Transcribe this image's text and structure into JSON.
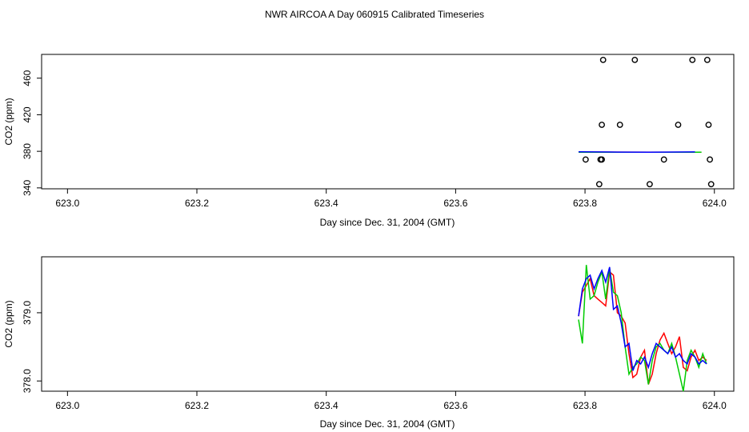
{
  "title": "NWR AIRCOA A  Day 060915  Calibrated Timeseries",
  "colors": {
    "red": "#ff0000",
    "green": "#00cc00",
    "blue": "#0000ff",
    "axis": "#000000"
  },
  "chart_data": [
    {
      "type": "scatter",
      "xlabel": "Day since Dec. 31, 2004 (GMT)",
      "ylabel": "CO2 (ppm)",
      "xlim": [
        622.96,
        624.03
      ],
      "ylim": [
        339,
        486
      ],
      "xticks": [
        623.0,
        623.2,
        623.4,
        623.6,
        623.8,
        624.0
      ],
      "xtick_labels": [
        "623.0",
        "623.2",
        "623.4",
        "623.6",
        "623.8",
        "624.0"
      ],
      "yticks": [
        340,
        380,
        420,
        460
      ],
      "ytick_labels": [
        "340",
        "380",
        "420",
        "460"
      ],
      "grid": false,
      "points": [
        {
          "x": 623.801,
          "y": 371
        },
        {
          "x": 623.822,
          "y": 344
        },
        {
          "x": 623.824,
          "y": 371
        },
        {
          "x": 623.826,
          "y": 371
        },
        {
          "x": 623.826,
          "y": 409
        },
        {
          "x": 623.828,
          "y": 480
        },
        {
          "x": 623.877,
          "y": 480
        },
        {
          "x": 623.854,
          "y": 409
        },
        {
          "x": 623.9,
          "y": 344
        },
        {
          "x": 623.922,
          "y": 371
        },
        {
          "x": 623.944,
          "y": 409
        },
        {
          "x": 623.966,
          "y": 480
        },
        {
          "x": 623.989,
          "y": 480
        },
        {
          "x": 623.991,
          "y": 409
        },
        {
          "x": 623.993,
          "y": 371
        },
        {
          "x": 623.995,
          "y": 344
        }
      ],
      "series": [
        {
          "color": "red",
          "x": [
            623.79,
            623.98
          ],
          "values": [
            379.2,
            379.0
          ]
        },
        {
          "color": "green",
          "x": [
            623.79,
            623.98
          ],
          "values": [
            379.0,
            379.1
          ]
        },
        {
          "color": "blue",
          "x": [
            623.79,
            623.85,
            623.9,
            623.97
          ],
          "values": [
            379.5,
            379.2,
            379.0,
            379.3
          ]
        }
      ]
    },
    {
      "type": "line",
      "xlabel": "Day since Dec. 31, 2004 (GMT)",
      "ylabel": "CO2 (ppm)",
      "xlim": [
        622.96,
        624.03
      ],
      "ylim": [
        377.85,
        379.82
      ],
      "xticks": [
        623.0,
        623.2,
        623.4,
        623.6,
        623.8,
        624.0
      ],
      "xtick_labels": [
        "623.0",
        "623.2",
        "623.4",
        "623.6",
        "623.8",
        "624.0"
      ],
      "yticks": [
        378.0,
        379.0
      ],
      "ytick_labels": [
        "378.0",
        "379.0"
      ],
      "grid": false,
      "series": [
        {
          "color": "red",
          "x": [
            623.79,
            623.796,
            623.802,
            623.808,
            623.814,
            623.82,
            623.826,
            623.832,
            623.838,
            623.844,
            623.85,
            623.856,
            623.862,
            623.868,
            623.874,
            623.88,
            623.886,
            623.892,
            623.898,
            623.904,
            623.91,
            623.916,
            623.922,
            623.928,
            623.934,
            623.94,
            623.946,
            623.952,
            623.958,
            623.964,
            623.97,
            623.976,
            623.982,
            623.988
          ],
          "values": [
            378.95,
            379.3,
            379.4,
            379.5,
            379.25,
            379.2,
            379.15,
            379.1,
            379.6,
            379.55,
            379.0,
            378.95,
            378.85,
            378.4,
            378.05,
            378.1,
            378.35,
            378.45,
            377.95,
            378.1,
            378.4,
            378.6,
            378.7,
            378.55,
            378.4,
            378.5,
            378.65,
            378.2,
            378.15,
            378.35,
            378.45,
            378.3,
            378.35,
            378.3
          ]
        },
        {
          "color": "green",
          "x": [
            623.79,
            623.796,
            623.802,
            623.808,
            623.814,
            623.82,
            623.826,
            623.832,
            623.838,
            623.844,
            623.85,
            623.856,
            623.862,
            623.868,
            623.874,
            623.88,
            623.886,
            623.892,
            623.898,
            623.904,
            623.91,
            623.916,
            623.922,
            623.928,
            623.934,
            623.94,
            623.946,
            623.952,
            623.958,
            623.964,
            623.97,
            623.976,
            623.982,
            623.988
          ],
          "values": [
            378.9,
            378.55,
            379.7,
            379.2,
            379.25,
            379.45,
            379.6,
            379.2,
            379.65,
            379.3,
            379.25,
            379.0,
            378.5,
            378.1,
            378.2,
            378.25,
            378.35,
            378.3,
            377.95,
            378.3,
            378.5,
            378.55,
            378.45,
            378.4,
            378.55,
            378.35,
            378.1,
            377.85,
            378.3,
            378.45,
            378.35,
            378.2,
            378.4,
            378.25
          ]
        },
        {
          "color": "blue",
          "x": [
            623.79,
            623.796,
            623.802,
            623.808,
            623.814,
            623.82,
            623.826,
            623.832,
            623.838,
            623.844,
            623.85,
            623.856,
            623.862,
            623.868,
            623.874,
            623.88,
            623.886,
            623.892,
            623.898,
            623.904,
            623.91,
            623.916,
            623.922,
            623.928,
            623.934,
            623.94,
            623.946,
            623.952,
            623.958,
            623.964,
            623.97,
            623.976,
            623.982,
            623.988
          ],
          "values": [
            378.95,
            379.35,
            379.5,
            379.55,
            379.35,
            379.5,
            379.62,
            379.45,
            379.67,
            379.05,
            379.1,
            378.85,
            378.5,
            378.55,
            378.15,
            378.3,
            378.25,
            378.35,
            378.2,
            378.4,
            378.55,
            378.5,
            378.45,
            378.4,
            378.5,
            378.35,
            378.4,
            378.3,
            378.25,
            378.4,
            378.35,
            378.25,
            378.3,
            378.25
          ]
        }
      ]
    }
  ]
}
